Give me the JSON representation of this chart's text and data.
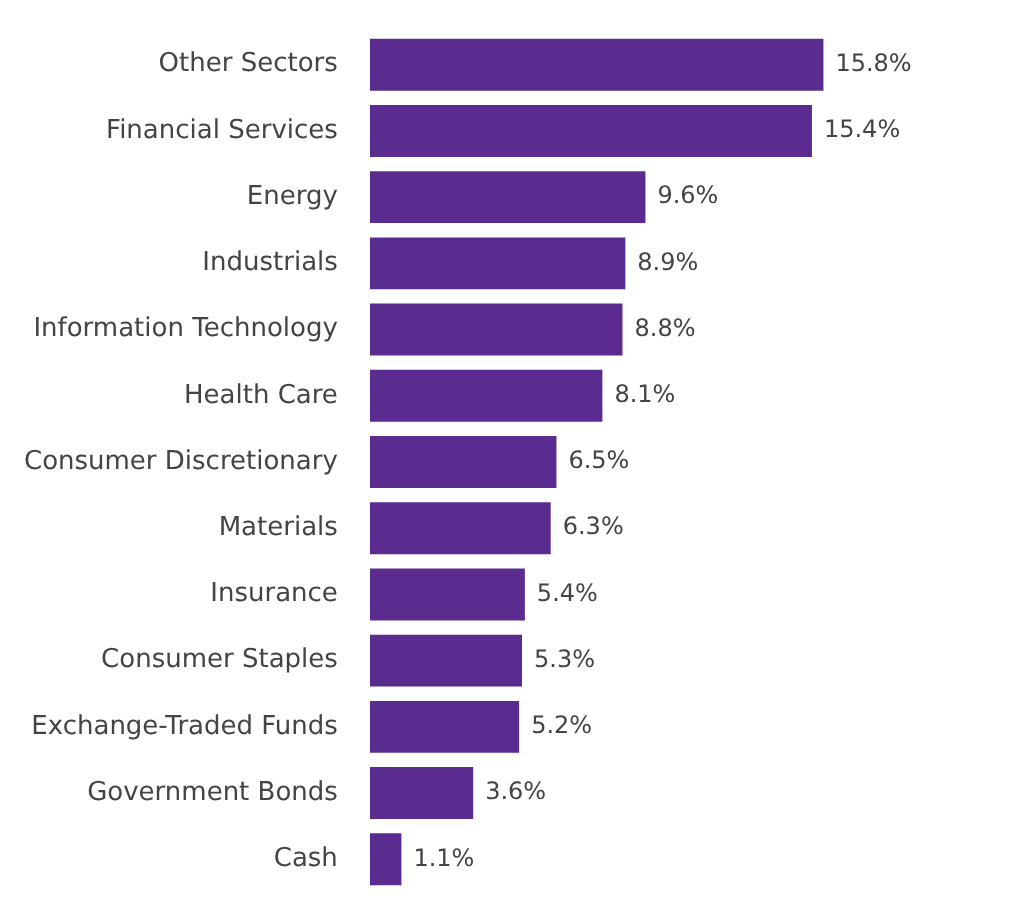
{
  "chart_data": {
    "type": "bar",
    "orientation": "horizontal",
    "categories": [
      "Other Sectors",
      "Financial Services",
      "Energy",
      "Industrials",
      "Information Technology",
      "Health Care",
      "Consumer Discretionary",
      "Materials",
      "Insurance",
      "Consumer Staples",
      "Exchange-Traded Funds",
      "Government Bonds",
      "Cash"
    ],
    "values": [
      15.8,
      15.4,
      9.6,
      8.9,
      8.8,
      8.1,
      6.5,
      6.3,
      5.4,
      5.3,
      5.2,
      3.6,
      1.1
    ],
    "value_labels": [
      "15.8%",
      "15.4%",
      "9.6%",
      "8.9%",
      "8.8%",
      "8.1%",
      "6.5%",
      "6.3%",
      "5.4%",
      "5.3%",
      "5.2%",
      "3.6%",
      "1.1%"
    ],
    "color": "#5b2c8f",
    "legend": false
  }
}
